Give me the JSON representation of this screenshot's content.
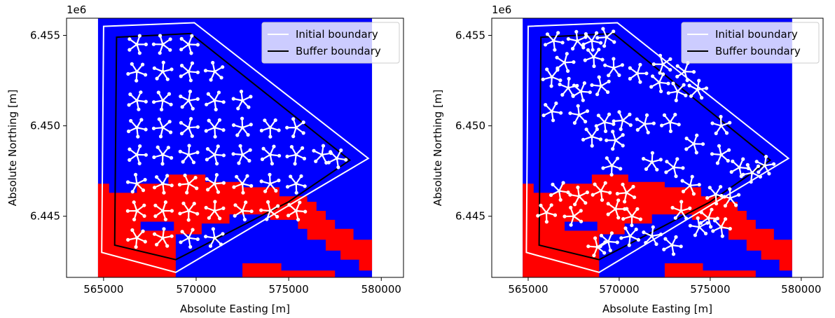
{
  "chart_data": [
    {
      "type": "map",
      "panel": "left",
      "xlabel": "Absolute Easting [m]",
      "ylabel": "Absolute Northing [m]",
      "y_offset_label": "1e6",
      "xlim": [
        563000,
        581200
      ],
      "ylim": [
        6.44162,
        6.45595
      ],
      "xticks": [
        565000,
        570000,
        575000,
        580000
      ],
      "xtick_labels": [
        "565000",
        "570000",
        "575000",
        "580000"
      ],
      "yticks": [
        6.445,
        6.45,
        6.455
      ],
      "ytick_labels": [
        "6.445",
        "6.450",
        "6.455"
      ],
      "grid": false,
      "legend_position": "top-right",
      "colors": {
        "field": "#0000ff",
        "zone": "#ff0000",
        "initial": "#ffffff",
        "buffer": "#000000",
        "turbine": "#ffffff"
      },
      "legend": [
        {
          "name": "Initial boundary",
          "color": "#ffffff"
        },
        {
          "name": "Buffer boundary",
          "color": "#000000"
        }
      ],
      "field_extent": {
        "x": [
          564700,
          579500
        ],
        "y": [
          6.44162,
          6.45595
        ]
      },
      "initial_boundary": [
        [
          565000,
          6.4555
        ],
        [
          569900,
          6.4557
        ],
        [
          579300,
          6.4482
        ],
        [
          568900,
          6.4419
        ],
        [
          564900,
          6.443
        ]
      ],
      "buffer_boundary": [
        [
          565700,
          6.4549
        ],
        [
          569700,
          6.4551
        ],
        [
          578300,
          6.4481
        ],
        [
          575000,
          6.4458
        ],
        [
          568900,
          6.4426
        ],
        [
          565600,
          6.4434
        ]
      ],
      "zone_polygons": [
        [
          [
            564700,
            6.4468
          ],
          [
            565300,
            6.4468
          ],
          [
            565300,
            6.4463
          ],
          [
            566800,
            6.4463
          ],
          [
            566800,
            6.4468
          ],
          [
            568500,
            6.4468
          ],
          [
            568500,
            6.4473
          ],
          [
            570500,
            6.4473
          ],
          [
            570500,
            6.4469
          ],
          [
            572500,
            6.4469
          ],
          [
            572500,
            6.4466
          ],
          [
            574500,
            6.4466
          ],
          [
            574500,
            6.4461
          ],
          [
            576000,
            6.4461
          ],
          [
            576000,
            6.4458
          ],
          [
            576500,
            6.4458
          ],
          [
            576500,
            6.4453
          ],
          [
            577000,
            6.4453
          ],
          [
            577000,
            6.4448
          ],
          [
            577500,
            6.4448
          ],
          [
            577500,
            6.4443
          ],
          [
            578500,
            6.4443
          ],
          [
            578500,
            6.4437
          ],
          [
            579500,
            6.4437
          ],
          [
            579500,
            6.442
          ],
          [
            578800,
            6.442
          ],
          [
            578800,
            6.4426
          ],
          [
            577800,
            6.4426
          ],
          [
            577800,
            6.4431
          ],
          [
            577000,
            6.4431
          ],
          [
            577000,
            6.4437
          ],
          [
            576000,
            6.4437
          ],
          [
            576000,
            6.4443
          ],
          [
            575500,
            6.4443
          ],
          [
            575500,
            6.4448
          ],
          [
            574000,
            6.4448
          ],
          [
            574000,
            6.4451
          ],
          [
            571800,
            6.4451
          ],
          [
            571800,
            6.4446
          ],
          [
            570300,
            6.4446
          ],
          [
            570300,
            6.444
          ],
          [
            568800,
            6.444
          ],
          [
            568800,
            6.4447
          ],
          [
            567000,
            6.4447
          ],
          [
            567000,
            6.4442
          ],
          [
            568900,
            6.4442
          ],
          [
            568900,
            6.44162
          ],
          [
            564700,
            6.44162
          ]
        ],
        [
          [
            572500,
            6.4424
          ],
          [
            574600,
            6.4424
          ],
          [
            574600,
            6.442
          ],
          [
            577500,
            6.442
          ],
          [
            577500,
            6.4416
          ],
          [
            572500,
            6.4416
          ]
        ]
      ],
      "turbines": [
        [
          566800,
          6.4545
        ],
        [
          568200,
          6.4545
        ],
        [
          569600,
          6.4545
        ],
        [
          566800,
          6.453
        ],
        [
          568200,
          6.453
        ],
        [
          569600,
          6.453
        ],
        [
          571000,
          6.453
        ],
        [
          566800,
          6.4514
        ],
        [
          568200,
          6.4514
        ],
        [
          569600,
          6.4514
        ],
        [
          571000,
          6.4514
        ],
        [
          572500,
          6.4514
        ],
        [
          566800,
          6.4499
        ],
        [
          568200,
          6.4499
        ],
        [
          569600,
          6.4499
        ],
        [
          571000,
          6.4499
        ],
        [
          572500,
          6.4499
        ],
        [
          574000,
          6.4499
        ],
        [
          575400,
          6.4499
        ],
        [
          566800,
          6.4484
        ],
        [
          568200,
          6.4484
        ],
        [
          569600,
          6.4484
        ],
        [
          571000,
          6.4484
        ],
        [
          572500,
          6.4484
        ],
        [
          574000,
          6.4484
        ],
        [
          575400,
          6.4484
        ],
        [
          576800,
          6.4484
        ],
        [
          577600,
          6.4482
        ],
        [
          566800,
          6.4468
        ],
        [
          568200,
          6.4468
        ],
        [
          569600,
          6.4468
        ],
        [
          571000,
          6.4468
        ],
        [
          572500,
          6.4468
        ],
        [
          574000,
          6.4468
        ],
        [
          575400,
          6.4468
        ],
        [
          566800,
          6.4453
        ],
        [
          568200,
          6.4453
        ],
        [
          569600,
          6.4453
        ],
        [
          571000,
          6.4453
        ],
        [
          572500,
          6.4453
        ],
        [
          574000,
          6.4453
        ],
        [
          575400,
          6.4453
        ],
        [
          566800,
          6.4438
        ],
        [
          568200,
          6.4438
        ],
        [
          569600,
          6.4438
        ],
        [
          571000,
          6.4438
        ]
      ]
    },
    {
      "type": "map",
      "panel": "right",
      "xlabel": "Absolute Easting [m]",
      "ylabel": "Absolute Northing [m]",
      "y_offset_label": "1e6",
      "xlim": [
        563000,
        581200
      ],
      "ylim": [
        6.44162,
        6.45595
      ],
      "xticks": [
        565000,
        570000,
        575000,
        580000
      ],
      "xtick_labels": [
        "565000",
        "570000",
        "575000",
        "580000"
      ],
      "yticks": [
        6.445,
        6.45,
        6.455
      ],
      "ytick_labels": [
        "6.445",
        "6.450",
        "6.455"
      ],
      "grid": false,
      "legend_position": "top-right",
      "colors": {
        "field": "#0000ff",
        "zone": "#ff0000",
        "initial": "#ffffff",
        "buffer": "#000000",
        "turbine": "#ffffff"
      },
      "legend": [
        {
          "name": "Initial boundary",
          "color": "#ffffff"
        },
        {
          "name": "Buffer boundary",
          "color": "#000000"
        }
      ],
      "field_extent": {
        "x": [
          564700,
          579500
        ],
        "y": [
          6.44162,
          6.45595
        ]
      },
      "initial_boundary": [
        [
          565000,
          6.4555
        ],
        [
          569900,
          6.4557
        ],
        [
          579300,
          6.4482
        ],
        [
          568900,
          6.4419
        ],
        [
          564900,
          6.443
        ]
      ],
      "buffer_boundary": [
        [
          565700,
          6.4549
        ],
        [
          569700,
          6.4551
        ],
        [
          578300,
          6.4481
        ],
        [
          575000,
          6.4458
        ],
        [
          568900,
          6.4426
        ],
        [
          565600,
          6.4434
        ]
      ],
      "zone_polygons": [
        [
          [
            564700,
            6.4468
          ],
          [
            565300,
            6.4468
          ],
          [
            565300,
            6.4463
          ],
          [
            566800,
            6.4463
          ],
          [
            566800,
            6.4468
          ],
          [
            568500,
            6.4468
          ],
          [
            568500,
            6.4473
          ],
          [
            570500,
            6.4473
          ],
          [
            570500,
            6.4469
          ],
          [
            572500,
            6.4469
          ],
          [
            572500,
            6.4466
          ],
          [
            574500,
            6.4466
          ],
          [
            574500,
            6.4461
          ],
          [
            576000,
            6.4461
          ],
          [
            576000,
            6.4458
          ],
          [
            576500,
            6.4458
          ],
          [
            576500,
            6.4453
          ],
          [
            577000,
            6.4453
          ],
          [
            577000,
            6.4448
          ],
          [
            577500,
            6.4448
          ],
          [
            577500,
            6.4443
          ],
          [
            578500,
            6.4443
          ],
          [
            578500,
            6.4437
          ],
          [
            579500,
            6.4437
          ],
          [
            579500,
            6.442
          ],
          [
            578800,
            6.442
          ],
          [
            578800,
            6.4426
          ],
          [
            577800,
            6.4426
          ],
          [
            577800,
            6.4431
          ],
          [
            577000,
            6.4431
          ],
          [
            577000,
            6.4437
          ],
          [
            576000,
            6.4437
          ],
          [
            576000,
            6.4443
          ],
          [
            575500,
            6.4443
          ],
          [
            575500,
            6.4448
          ],
          [
            574000,
            6.4448
          ],
          [
            574000,
            6.4451
          ],
          [
            571800,
            6.4451
          ],
          [
            571800,
            6.4446
          ],
          [
            570300,
            6.4446
          ],
          [
            570300,
            6.444
          ],
          [
            568800,
            6.444
          ],
          [
            568800,
            6.4447
          ],
          [
            567000,
            6.4447
          ],
          [
            567000,
            6.4442
          ],
          [
            568900,
            6.4442
          ],
          [
            568900,
            6.44162
          ],
          [
            564700,
            6.44162
          ]
        ],
        [
          [
            572500,
            6.4424
          ],
          [
            574600,
            6.4424
          ],
          [
            574600,
            6.442
          ],
          [
            577500,
            6.442
          ],
          [
            577500,
            6.4416
          ],
          [
            572500,
            6.4416
          ]
        ]
      ],
      "turbines": [
        [
          566400,
          6.4547
        ],
        [
          567700,
          6.4547
        ],
        [
          568500,
          6.4547
        ],
        [
          569300,
          6.4549
        ],
        [
          567000,
          6.4535
        ],
        [
          568600,
          6.4538
        ],
        [
          569700,
          6.4532
        ],
        [
          571000,
          6.4529
        ],
        [
          572400,
          6.4534
        ],
        [
          573600,
          6.453
        ],
        [
          566300,
          6.4527
        ],
        [
          567200,
          6.4521
        ],
        [
          567900,
          6.4519
        ],
        [
          569000,
          6.4522
        ],
        [
          572200,
          6.4524
        ],
        [
          573200,
          6.4519
        ],
        [
          574300,
          6.452
        ],
        [
          566300,
          6.4508
        ],
        [
          567800,
          6.4506
        ],
        [
          569200,
          6.4502
        ],
        [
          570200,
          6.4503
        ],
        [
          571400,
          6.4501
        ],
        [
          572800,
          6.4502
        ],
        [
          575600,
          6.45
        ],
        [
          568500,
          6.4494
        ],
        [
          569800,
          6.4492
        ],
        [
          574100,
          6.449
        ],
        [
          569600,
          6.4478
        ],
        [
          571800,
          6.448
        ],
        [
          573000,
          6.4477
        ],
        [
          575600,
          6.4484
        ],
        [
          576600,
          6.4477
        ],
        [
          577300,
          6.4474
        ],
        [
          578000,
          6.4478
        ],
        [
          566700,
          6.4464
        ],
        [
          567800,
          6.4461
        ],
        [
          569000,
          6.4464
        ],
        [
          570400,
          6.4463
        ],
        [
          573900,
          6.4467
        ],
        [
          575300,
          6.4462
        ],
        [
          576100,
          6.446
        ],
        [
          566000,
          6.4452
        ],
        [
          567500,
          6.445
        ],
        [
          569800,
          6.4454
        ],
        [
          570700,
          6.445
        ],
        [
          573400,
          6.4453
        ],
        [
          574900,
          6.4449
        ],
        [
          568800,
          6.4433
        ],
        [
          569400,
          6.4436
        ],
        [
          570600,
          6.4439
        ],
        [
          571800,
          6.4439
        ],
        [
          572900,
          6.4434
        ],
        [
          574400,
          6.4444
        ],
        [
          575600,
          6.4444
        ]
      ]
    }
  ]
}
